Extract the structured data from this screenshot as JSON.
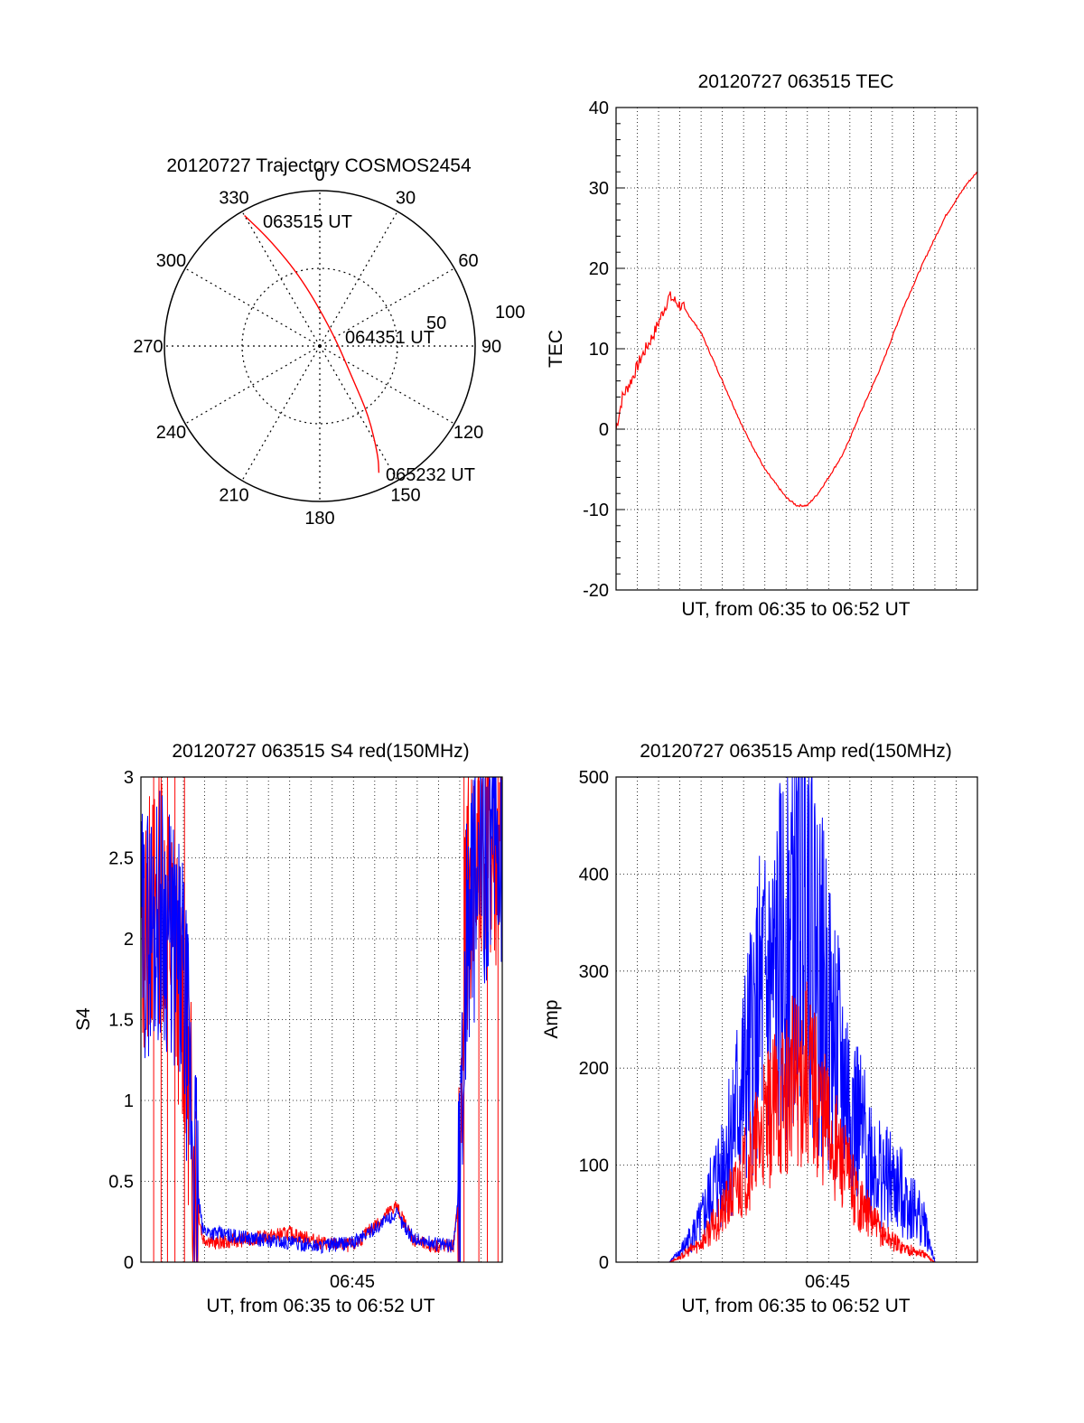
{
  "colors": {
    "red": "#ff0000",
    "blue": "#0000ff",
    "axis": "#000000",
    "grid": "#000000"
  },
  "charts": {
    "polar": {
      "title": "20120727 Trajectory COSMOS2454",
      "azimuth_labels": [
        "0",
        "30",
        "60",
        "90",
        "120",
        "150",
        "180",
        "210",
        "240",
        "270",
        "300",
        "330"
      ],
      "radius_labels": [
        "50",
        "100"
      ],
      "time_labels": [
        "063515 UT",
        "064351 UT",
        "065232 UT"
      ]
    },
    "tec": {
      "title": "20120727 063515 TEC",
      "ylabel": "TEC",
      "xlabel": "UT, from 06:35 to 06:52 UT",
      "yticks": [
        "40",
        "30",
        "20",
        "10",
        "0",
        "-10",
        "-20"
      ]
    },
    "s4": {
      "title": "20120727 063515 S4 red(150MHz)",
      "ylabel": "S4",
      "xlabel": "UT, from 06:35 to 06:52 UT",
      "xtick": "06:45",
      "yticks": [
        "3",
        "2.5",
        "2",
        "1.5",
        "1",
        "0.5",
        "0"
      ]
    },
    "amp": {
      "title": "20120727 063515 Amp red(150MHz)",
      "ylabel": "Amp",
      "xlabel": "UT, from 06:35 to 06:52 UT",
      "xtick": "06:45",
      "yticks": [
        "500",
        "400",
        "300",
        "200",
        "100",
        "0"
      ]
    }
  },
  "chart_data": [
    {
      "type": "scatter",
      "title": "20120727 Trajectory COSMOS2454",
      "projection": "polar",
      "r_range": [
        0,
        100
      ],
      "series": [
        {
          "color": "#ff0000",
          "points": [
            [
              330,
              97
            ],
            [
              335,
              75
            ],
            [
              345,
              45
            ],
            [
              45,
              12
            ],
            [
              135,
              30
            ],
            [
              145,
              55
            ],
            [
              152,
              80
            ],
            [
              155,
              90
            ]
          ]
        }
      ],
      "annotations": [
        "063515 UT",
        "064351 UT",
        "065232 UT"
      ]
    },
    {
      "type": "line",
      "title": "20120727 063515 TEC",
      "xlabel": "UT, from 06:35 to 06:52 UT",
      "ylabel": "TEC",
      "x_range_minutes": [
        0,
        17
      ],
      "ylim": [
        -20,
        40
      ],
      "grid": true,
      "series": [
        {
          "color": "#ff0000",
          "x": [
            0,
            0.3,
            0.7,
            1.2,
            1.8,
            2.5,
            3.2,
            4.0,
            5.0,
            6.0,
            7.0,
            8.0,
            8.5,
            9.0,
            9.5,
            10.0,
            10.7,
            11.5,
            12.5,
            13.5,
            14.5,
            15.5,
            16.5,
            17.0
          ],
          "y": [
            0,
            4,
            6,
            9,
            12,
            16.5,
            15,
            12,
            6,
            0,
            -5,
            -8.5,
            -9.5,
            -9.5,
            -8,
            -6,
            -3,
            2,
            8,
            15,
            21,
            26.5,
            30.5,
            32
          ]
        }
      ]
    },
    {
      "type": "line",
      "title": "20120727 063515 S4 red(150MHz)",
      "xlabel": "UT, from 06:35 to 06:52 UT",
      "ylabel": "S4",
      "x_range_minutes": [
        0,
        17
      ],
      "ylim": [
        0,
        3
      ],
      "grid": true,
      "series": [
        {
          "color": "#0000ff",
          "x": [
            0,
            1.0,
            2.0,
            2.6,
            2.9,
            3.5,
            5.0,
            7.0,
            8.5,
            10.0,
            12.0,
            12.8,
            13.5,
            14.7,
            15.0,
            15.3,
            16.0,
            17.0
          ],
          "y": [
            2.0,
            2.2,
            1.7,
            0.5,
            0.2,
            0.18,
            0.15,
            0.12,
            0.1,
            0.12,
            0.3,
            0.15,
            0.12,
            0.1,
            0.5,
            2.0,
            2.5,
            2.6
          ]
        },
        {
          "color": "#ff0000",
          "x": [
            0,
            1.0,
            2.0,
            2.6,
            2.9,
            3.5,
            5.0,
            7.0,
            8.5,
            10.0,
            12.0,
            12.8,
            13.5,
            14.7,
            15.0,
            15.3,
            16.0,
            17.0
          ],
          "y": [
            2.0,
            2.3,
            1.6,
            0.4,
            0.15,
            0.12,
            0.14,
            0.18,
            0.12,
            0.1,
            0.35,
            0.14,
            0.1,
            0.1,
            0.45,
            2.2,
            2.6,
            2.4
          ]
        }
      ]
    },
    {
      "type": "line",
      "title": "20120727 063515 Amp red(150MHz)",
      "xlabel": "UT, from 06:35 to 06:52 UT",
      "ylabel": "Amp",
      "x_range_minutes": [
        0,
        17
      ],
      "ylim": [
        0,
        500
      ],
      "grid": true,
      "series": [
        {
          "color": "#0000ff",
          "x": [
            0,
            2.5,
            3.0,
            4.0,
            5.0,
            6.0,
            6.8,
            7.5,
            8.5,
            9.0,
            9.5,
            10.5,
            11.5,
            12.5,
            13.5,
            14.5,
            15.0,
            17.0
          ],
          "y": [
            0,
            0,
            10,
            40,
            100,
            180,
            260,
            280,
            380,
            420,
            300,
            200,
            130,
            90,
            70,
            40,
            0,
            0
          ]
        },
        {
          "color": "#ff0000",
          "x": [
            0,
            2.5,
            3.0,
            4.0,
            5.0,
            6.0,
            6.8,
            7.5,
            8.5,
            9.0,
            9.5,
            10.5,
            11.5,
            12.5,
            13.5,
            14.5,
            15.0,
            17.0
          ],
          "y": [
            0,
            0,
            5,
            20,
            50,
            90,
            130,
            160,
            190,
            200,
            170,
            110,
            60,
            30,
            15,
            8,
            0,
            0
          ]
        }
      ]
    }
  ]
}
